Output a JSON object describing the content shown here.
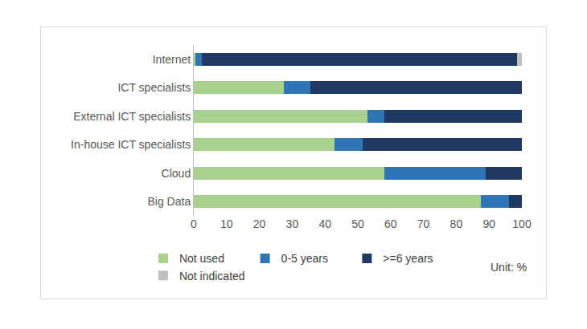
{
  "chart_data": {
    "type": "bar",
    "orientation": "horizontal",
    "stacked": true,
    "categories": [
      "Internet",
      "ICT specialists",
      "External ICT specialists",
      "In-house ICT specialists",
      "Cloud",
      "Big Data"
    ],
    "series": [
      {
        "name": "Not used",
        "color": "#a9d18e",
        "values": [
          0.5,
          27.5,
          53,
          43,
          58,
          87.5
        ]
      },
      {
        "name": "0-5 years",
        "color": "#2e75b6",
        "values": [
          2,
          8,
          5,
          8.5,
          31,
          8.5
        ]
      },
      {
        "name": ">=6 years",
        "color": "#1f3864",
        "values": [
          96,
          64.5,
          42,
          48.5,
          11,
          4
        ]
      },
      {
        "name": "Not indicated",
        "color": "#bfbfbf",
        "values": [
          1.5,
          0,
          0,
          0,
          0,
          0
        ]
      }
    ],
    "xlim": [
      0,
      100
    ],
    "xticks": [
      0,
      10,
      20,
      30,
      40,
      50,
      60,
      70,
      80,
      90,
      100
    ],
    "grid": false,
    "legend": "bottom",
    "annotations": [
      "Unit: %"
    ]
  }
}
